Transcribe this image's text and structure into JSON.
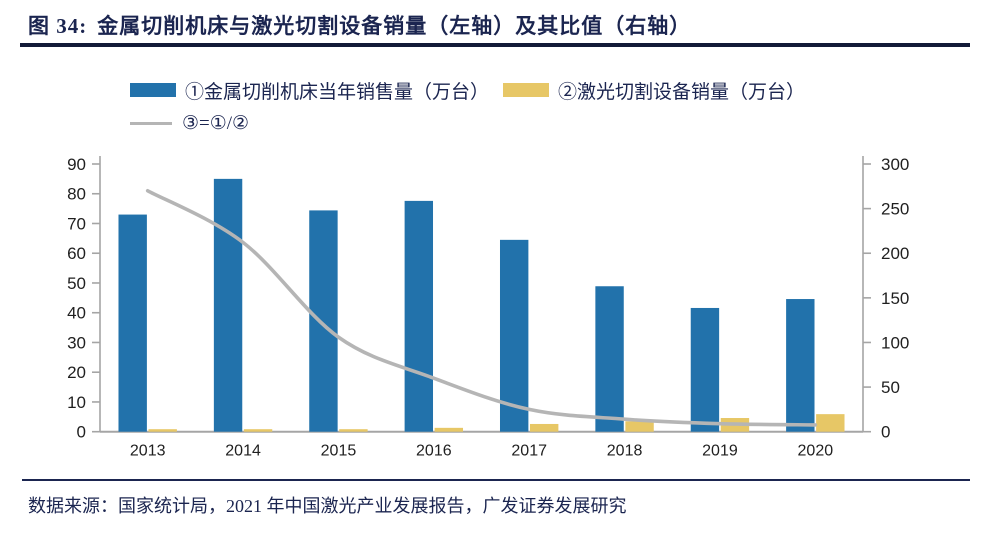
{
  "figure": {
    "label": "图 34:",
    "title": "金属切削机床与激光切割设备销量（左轴）及其比值（右轴）"
  },
  "footer": {
    "source": "数据来源：国家统计局，2021 年中国激光产业发展报告，广发证券发展研究"
  },
  "colors": {
    "title_navy": "#1b2550",
    "metal_bar_blue": "#2272ab",
    "laser_bar_yellow": "#e7c766",
    "ratio_line_gray": "#b5b5b5",
    "axis_gray": "#a5a5a5",
    "tick_text": "#1f1f1f"
  },
  "chart_data": {
    "type": "combo-bar-line",
    "categories": [
      "2013",
      "2014",
      "2015",
      "2016",
      "2017",
      "2018",
      "2019",
      "2020"
    ],
    "series": [
      {
        "name": "①金属切削机床当年销售量（万台）",
        "type": "bar",
        "axis": "left",
        "color": "#2272ab",
        "values": [
          73,
          85,
          74.4,
          77.6,
          64.5,
          48.9,
          41.6,
          44.6
        ]
      },
      {
        "name": "②激光切割设备销量（万台）",
        "type": "bar",
        "axis": "left",
        "color": "#e7c766",
        "values": [
          0.3,
          0.4,
          0.7,
          1.3,
          2.6,
          3.5,
          4.6,
          5.9
        ]
      },
      {
        "name": "③=①/②",
        "type": "line",
        "axis": "right",
        "color": "#b5b5b5",
        "values": [
          270,
          212,
          106,
          60,
          25,
          14,
          9,
          7.6
        ]
      }
    ],
    "left_axis": {
      "min": 0,
      "max": 90,
      "ticks": [
        0,
        10,
        20,
        30,
        40,
        50,
        60,
        70,
        80,
        90
      ]
    },
    "right_axis": {
      "min": 0,
      "max": 300,
      "ticks": [
        0,
        50,
        100,
        150,
        200,
        250,
        300
      ]
    },
    "grid": false,
    "legend_position": "top-left"
  }
}
